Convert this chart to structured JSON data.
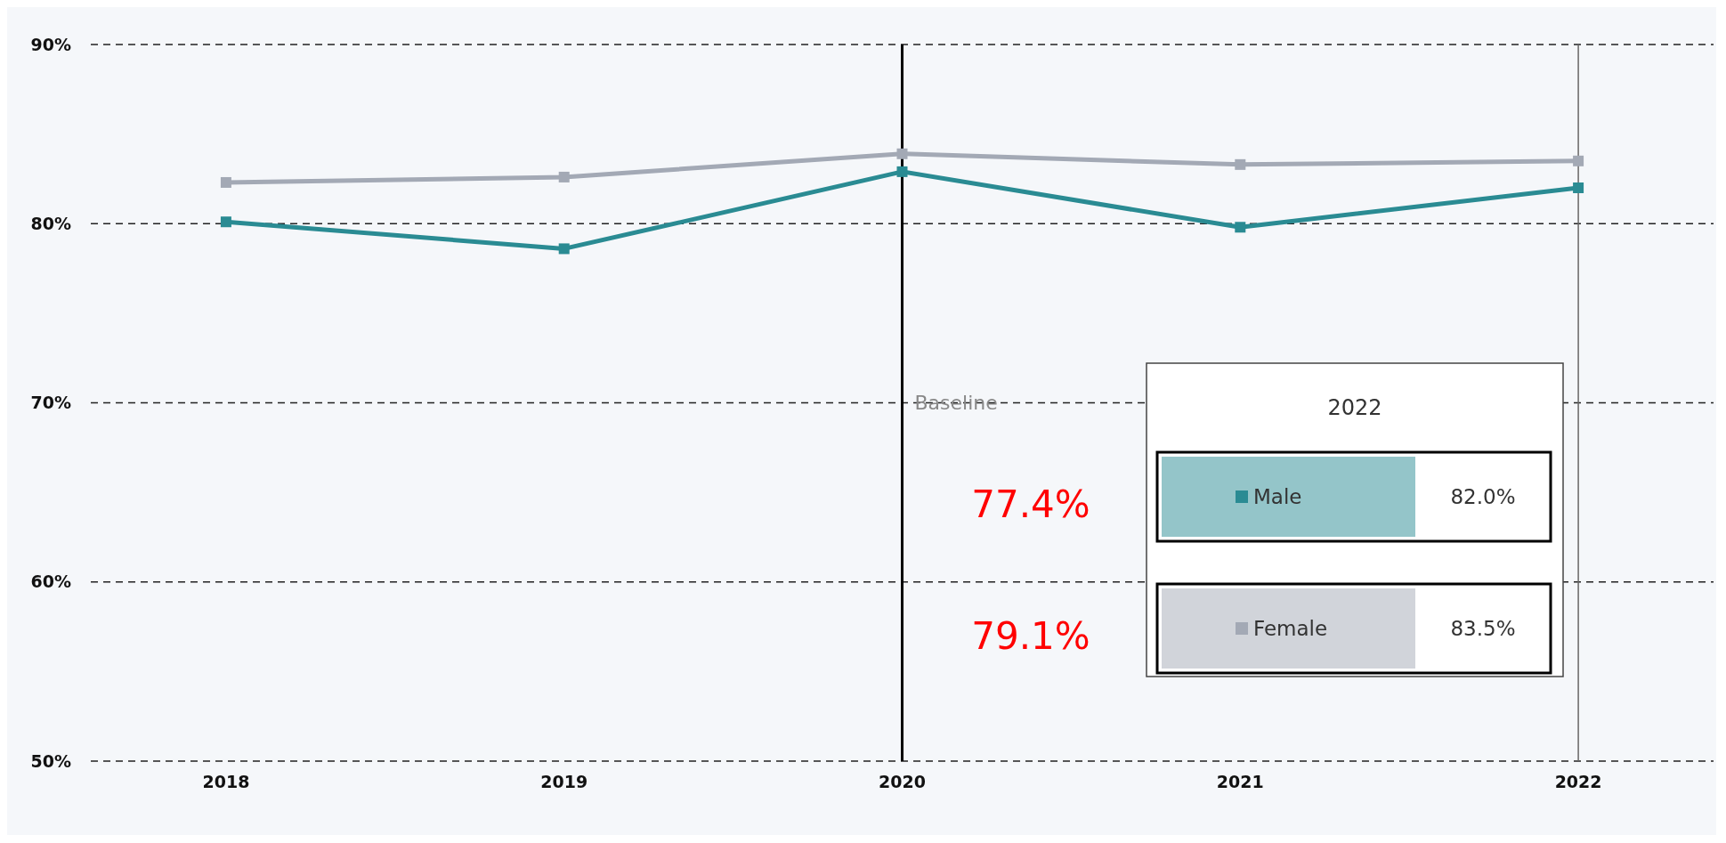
{
  "chart_data": {
    "type": "line",
    "categories": [
      "2018",
      "2019",
      "2020",
      "2021",
      "2022"
    ],
    "series": [
      {
        "name": "Male",
        "color": "#2a8b93",
        "values": [
          80.1,
          78.6,
          82.9,
          79.8,
          82.0
        ]
      },
      {
        "name": "Female",
        "color": "#a3a9b5",
        "values": [
          82.3,
          82.6,
          83.9,
          83.3,
          83.5
        ]
      }
    ],
    "ylim": [
      50,
      90
    ],
    "yticks": [
      {
        "value": 50,
        "label": "50%"
      },
      {
        "value": 60,
        "label": "60%"
      },
      {
        "value": 70,
        "label": "70%"
      },
      {
        "value": 80,
        "label": "80%"
      },
      {
        "value": 90,
        "label": "90%"
      }
    ],
    "grid": "y",
    "marker": "square",
    "line_style": "solid",
    "legend": "bottom right",
    "ref_lines": [
      {
        "axis": "x",
        "value": "2020",
        "label": "Baseline",
        "color": "#000000"
      },
      {
        "axis": "x",
        "value": "2022",
        "color": "#666666"
      }
    ],
    "annotations": [
      "77.4%",
      "79.1%",
      "2022",
      "82.0%",
      "83.5%"
    ]
  }
}
